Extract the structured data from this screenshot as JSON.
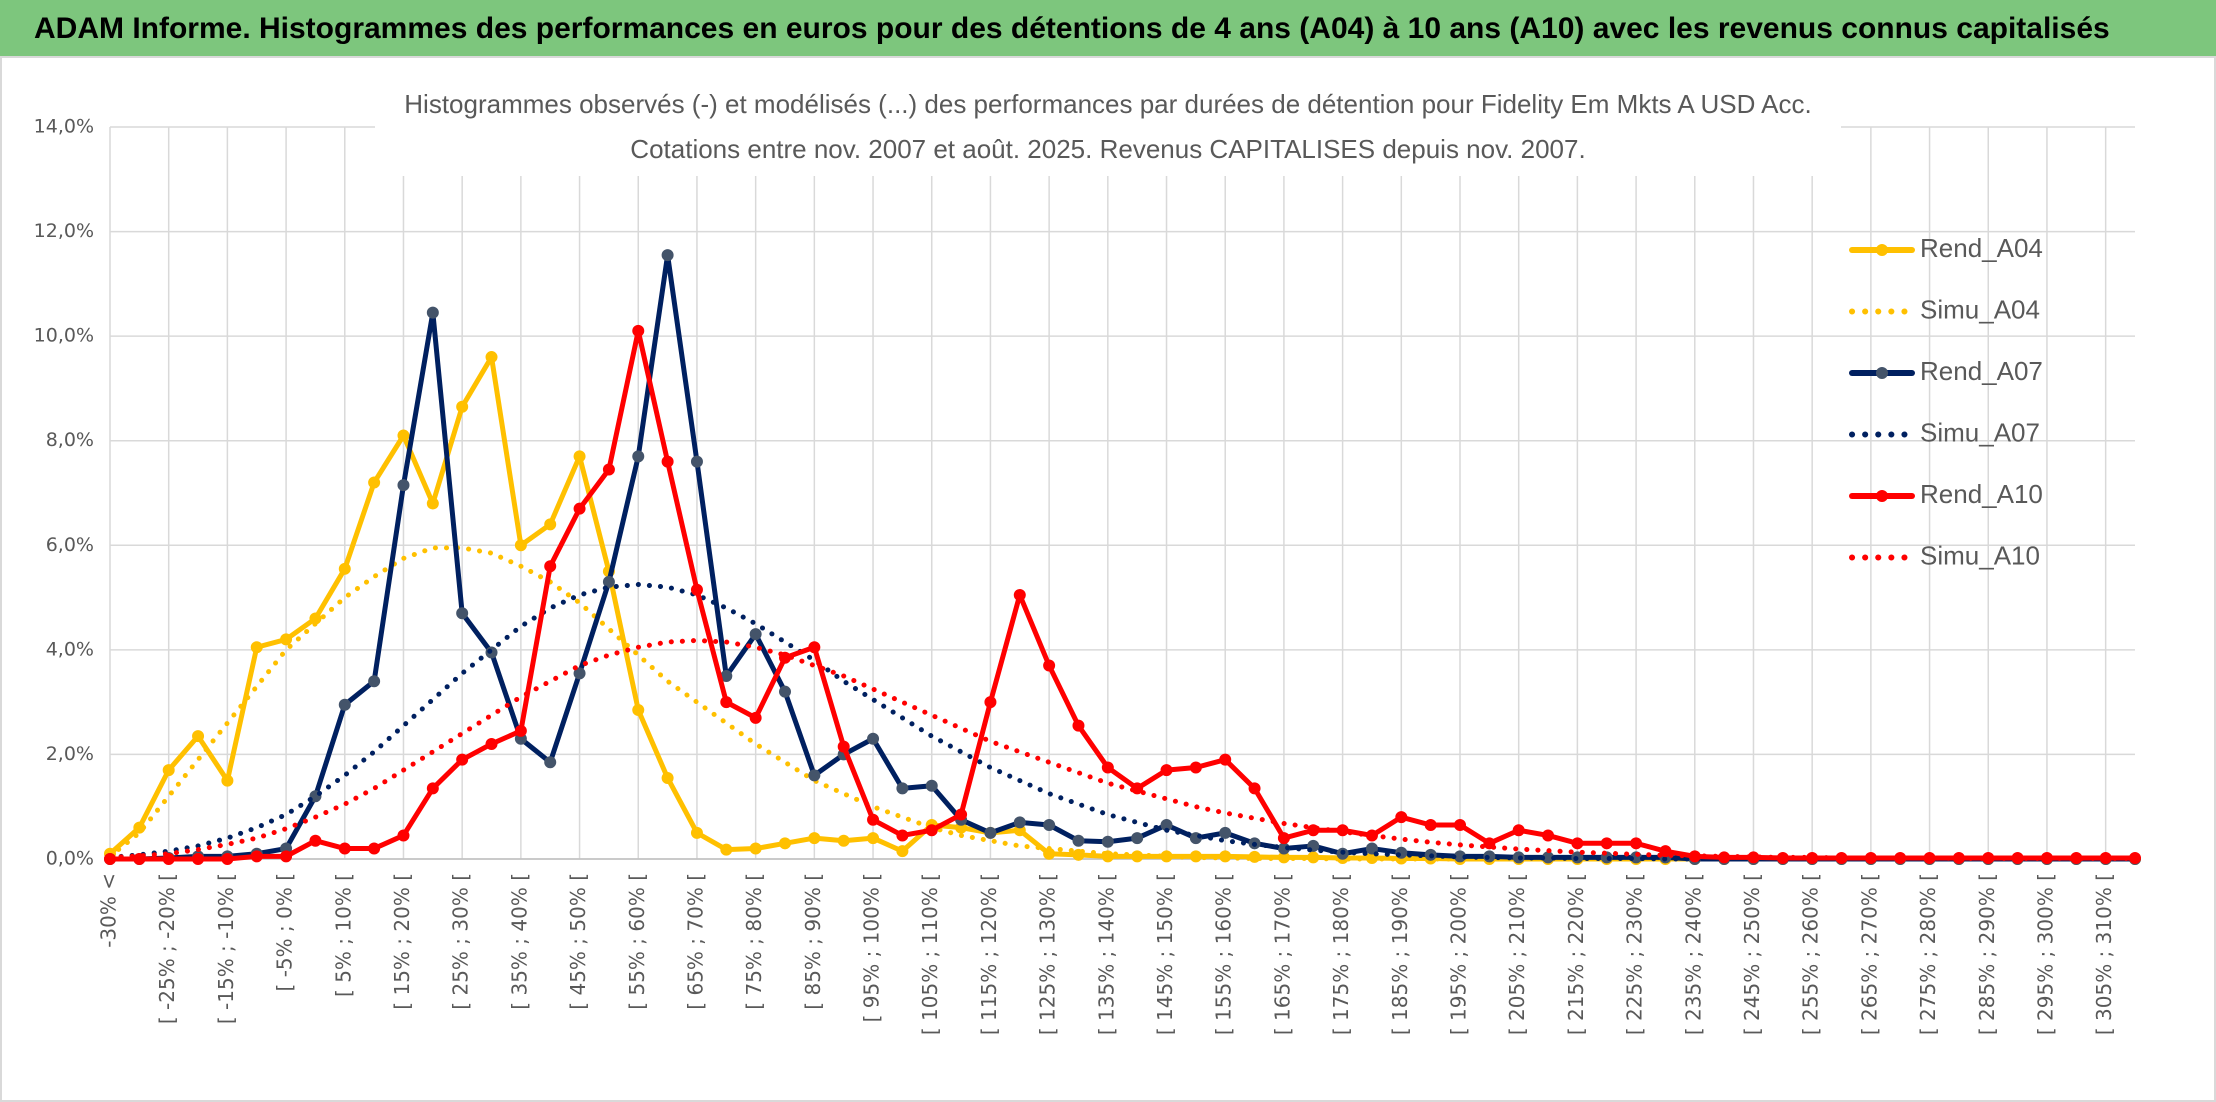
{
  "header": {
    "title": "ADAM Informe. Histogrammes des performances en euros pour des détentions de 4 ans (A04) à 10 ans (A10) avec les revenus connus capitalisés"
  },
  "chart_data": {
    "type": "line",
    "title": "Histogrammes observés (-) et modélisés (...) des performances par durées de détention pour Fidelity Em Mkts A USD Acc.",
    "subtitle": "Cotations entre nov. 2007 et août. 2025. Revenus CAPITALISES depuis nov. 2007.",
    "categories": [
      "-30% <",
      null,
      "[ -25% ; -20% [",
      null,
      "[ -15% ; -10% [",
      null,
      "[ -5% ; 0% [",
      null,
      "[ 5% ; 10% [",
      null,
      "[ 15% ; 20% [",
      null,
      "[ 25% ; 30% [",
      null,
      "[ 35% ; 40% [",
      null,
      "[ 45% ; 50% [",
      null,
      "[ 55% ; 60% [",
      null,
      "[ 65% ; 70% [",
      null,
      "[ 75% ; 80% [",
      null,
      "[ 85% ; 90% [",
      null,
      "[ 95% ; 100% [",
      null,
      "[ 105% ; 110% [",
      null,
      "[ 115% ; 120% [",
      null,
      "[ 125% ; 130% [",
      null,
      "[ 135% ; 140% [",
      null,
      "[ 145% ; 150% [",
      null,
      "[ 155% ; 160% [",
      null,
      "[ 165% ; 170% [",
      null,
      "[ 175% ; 180% [",
      null,
      "[ 185% ; 190% [",
      null,
      "[ 195% ; 200% [",
      null,
      "[ 205% ; 210% [",
      null,
      "[ 215% ; 220% [",
      null,
      "[ 225% ; 230% [",
      null,
      "[ 235% ; 240% [",
      null,
      "[ 245% ; 250% [",
      null,
      "[ 255% ; 260% [",
      null,
      "[ 265% ; 270% [",
      null,
      "[ 275% ; 280% [",
      null,
      "[ 285% ; 290% [",
      null,
      "[ 295% ; 300% [",
      null,
      "[ 305% ; 310% [",
      null
    ],
    "ylim": [
      0,
      14
    ],
    "yticks": [
      {
        "value": 0,
        "label": "0,0%"
      },
      {
        "value": 2,
        "label": "2,0%"
      },
      {
        "value": 4,
        "label": "4,0%"
      },
      {
        "value": 6,
        "label": "6,0%"
      },
      {
        "value": 8,
        "label": "8,0%"
      },
      {
        "value": 10,
        "label": "10,0%"
      },
      {
        "value": 12,
        "label": "12,0%"
      },
      {
        "value": 14,
        "label": "14,0%"
      }
    ],
    "grid": true,
    "legend": "right",
    "series": [
      {
        "name": "Rend_A04",
        "color": "#FFC000",
        "style": "solid",
        "markers": true,
        "values": [
          0.1,
          0.6,
          1.7,
          2.35,
          1.5,
          4.05,
          4.2,
          4.6,
          5.55,
          7.2,
          8.1,
          6.8,
          8.65,
          9.6,
          6.0,
          6.4,
          7.7,
          5.5,
          2.85,
          1.55,
          0.5,
          0.18,
          0.2,
          0.3,
          0.4,
          0.35,
          0.4,
          0.15,
          0.65,
          0.6,
          0.5,
          0.55,
          0.1,
          0.08,
          0.05,
          0.05,
          0.05,
          0.05,
          0.05,
          0.04,
          0.03,
          0.03,
          0.02,
          0.02,
          0.01,
          0.01,
          0,
          0,
          0,
          0,
          0,
          0,
          0,
          0,
          0,
          0,
          0,
          0,
          0,
          0,
          0,
          0,
          0,
          0,
          0,
          0,
          0,
          0,
          0,
          0
        ]
      },
      {
        "name": "Simu_A04",
        "color": "#FFC000",
        "style": "dotted",
        "markers": false,
        "values": [
          0.05,
          0.5,
          1.2,
          1.9,
          2.6,
          3.3,
          4.0,
          4.5,
          5.0,
          5.4,
          5.75,
          5.95,
          5.95,
          5.85,
          5.6,
          5.3,
          4.9,
          4.4,
          3.9,
          3.4,
          3.0,
          2.6,
          2.2,
          1.85,
          1.5,
          1.25,
          1.0,
          0.8,
          0.6,
          0.45,
          0.35,
          0.25,
          0.2,
          0.15,
          0.1,
          0.08,
          0.05,
          0.03,
          0.02,
          0.01,
          0.01,
          0.01,
          0,
          0,
          0,
          0,
          0,
          0,
          0,
          0,
          0,
          0,
          0,
          0,
          0,
          0,
          0,
          0,
          0,
          0,
          0,
          0,
          0,
          0,
          0,
          0,
          0,
          0,
          0,
          0
        ]
      },
      {
        "name": "Rend_A07",
        "color": "#002060",
        "style": "solid",
        "markers": true,
        "marker_color": "#44546A",
        "values": [
          0,
          0,
          0.02,
          0.05,
          0.05,
          0.1,
          0.2,
          1.2,
          2.95,
          3.4,
          7.15,
          10.45,
          4.7,
          3.95,
          2.3,
          1.85,
          3.55,
          5.3,
          7.7,
          11.55,
          7.6,
          3.5,
          4.3,
          3.2,
          1.6,
          2.0,
          2.3,
          1.35,
          1.4,
          0.75,
          0.5,
          0.7,
          0.65,
          0.35,
          0.33,
          0.4,
          0.65,
          0.4,
          0.5,
          0.3,
          0.2,
          0.25,
          0.1,
          0.2,
          0.12,
          0.08,
          0.05,
          0.05,
          0.03,
          0.03,
          0.03,
          0.03,
          0.03,
          0.03,
          0,
          0,
          0,
          0,
          0,
          0,
          0,
          0,
          0,
          0,
          0,
          0,
          0,
          0,
          0,
          0
        ]
      },
      {
        "name": "Simu_A07",
        "color": "#002060",
        "style": "dotted",
        "markers": false,
        "values": [
          0.03,
          0.08,
          0.15,
          0.25,
          0.4,
          0.6,
          0.85,
          1.2,
          1.6,
          2.05,
          2.55,
          3.05,
          3.55,
          4.0,
          4.45,
          4.8,
          5.05,
          5.2,
          5.25,
          5.2,
          5.05,
          4.8,
          4.5,
          4.15,
          3.8,
          3.4,
          3.05,
          2.7,
          2.35,
          2.05,
          1.75,
          1.5,
          1.25,
          1.05,
          0.85,
          0.7,
          0.55,
          0.45,
          0.35,
          0.28,
          0.22,
          0.17,
          0.13,
          0.1,
          0.08,
          0.06,
          0.04,
          0.03,
          0.02,
          0.02,
          0.01,
          0.01,
          0.01,
          0,
          0,
          0,
          0,
          0,
          0,
          0,
          0,
          0,
          0,
          0,
          0,
          0,
          0,
          0,
          0,
          0
        ]
      },
      {
        "name": "Rend_A10",
        "color": "#FF0000",
        "style": "solid",
        "markers": true,
        "values": [
          0,
          0,
          0,
          0,
          0,
          0.05,
          0.05,
          0.35,
          0.2,
          0.2,
          0.45,
          1.35,
          1.9,
          2.2,
          2.45,
          5.6,
          6.7,
          7.45,
          10.1,
          7.6,
          5.15,
          3.0,
          2.7,
          3.85,
          4.05,
          2.15,
          0.75,
          0.45,
          0.55,
          0.85,
          3.0,
          5.05,
          3.7,
          2.55,
          1.75,
          1.35,
          1.7,
          1.75,
          1.9,
          1.35,
          0.4,
          0.55,
          0.55,
          0.45,
          0.8,
          0.65,
          0.65,
          0.3,
          0.55,
          0.45,
          0.3,
          0.3,
          0.3,
          0.15,
          0.05,
          0.03,
          0.03,
          0.02,
          0.02,
          0.02,
          0.02,
          0.02,
          0.02,
          0.02,
          0.02,
          0.02,
          0.02,
          0.02,
          0.02,
          0.02
        ]
      },
      {
        "name": "Simu_A10",
        "color": "#FF0000",
        "style": "dotted",
        "markers": false,
        "values": [
          0.03,
          0.06,
          0.1,
          0.18,
          0.28,
          0.4,
          0.58,
          0.8,
          1.05,
          1.35,
          1.7,
          2.05,
          2.4,
          2.75,
          3.1,
          3.4,
          3.7,
          3.9,
          4.05,
          4.15,
          4.18,
          4.15,
          4.05,
          3.9,
          3.7,
          3.5,
          3.25,
          3.0,
          2.75,
          2.5,
          2.25,
          2.05,
          1.85,
          1.65,
          1.45,
          1.3,
          1.15,
          1.0,
          0.88,
          0.78,
          0.68,
          0.6,
          0.52,
          0.45,
          0.38,
          0.32,
          0.27,
          0.23,
          0.19,
          0.16,
          0.13,
          0.11,
          0.09,
          0.07,
          0.06,
          0.05,
          0.04,
          0.03,
          0.03,
          0.02,
          0.02,
          0.02,
          0.02,
          0.01,
          0.01,
          0.01,
          0.01,
          0.01,
          0.01,
          0.01
        ]
      }
    ]
  }
}
